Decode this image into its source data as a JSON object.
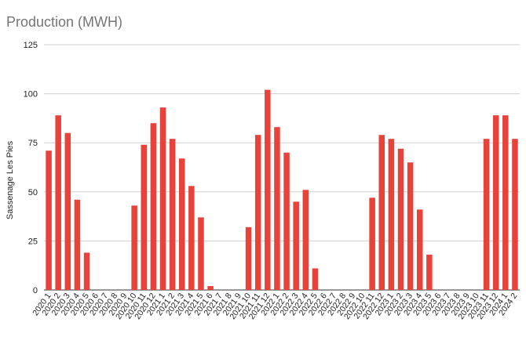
{
  "chart_data": {
    "type": "bar",
    "title": "Production (MWH)",
    "xlabel": "",
    "ylabel": "Sassenage Les Pies",
    "ylim": [
      0,
      125
    ],
    "yticks": [
      0,
      25,
      50,
      75,
      100,
      125
    ],
    "grid": true,
    "bar_color": "#e8433a",
    "categories": [
      "2020 1",
      "2020 2",
      "2020 3",
      "2020 4",
      "2020 5",
      "2020 6",
      "2020 7",
      "2020 8",
      "2020 9",
      "2020 10",
      "2020 11",
      "2020 12",
      "2021 1",
      "2021 2",
      "2021 3",
      "2021 4",
      "2021 5",
      "2021 6",
      "2021 7",
      "2021 8",
      "2021 9",
      "2021 10",
      "2021 11",
      "2021 12",
      "2022 1",
      "2022 2",
      "2022 3",
      "2022 4",
      "2022 5",
      "2022 6",
      "2022 7",
      "2022 8",
      "2022 9",
      "2022 10",
      "2022 11",
      "2022 12",
      "2023 1",
      "2023 2",
      "2023 3",
      "2023 4",
      "2023 5",
      "2023 6",
      "2023 7",
      "2023 8",
      "2023 9",
      "2023 10",
      "2023 11",
      "2023 12",
      "2024 1",
      "2024 2"
    ],
    "values": [
      71,
      89,
      80,
      46,
      19,
      0,
      0,
      0,
      0,
      43,
      74,
      85,
      93,
      77,
      67,
      53,
      37,
      2,
      0,
      0,
      0,
      32,
      79,
      102,
      83,
      70,
      45,
      51,
      11,
      0,
      0,
      0,
      0,
      0,
      47,
      79,
      77,
      72,
      65,
      41,
      18,
      0,
      0,
      0,
      0,
      0,
      77,
      89,
      89,
      77
    ]
  }
}
